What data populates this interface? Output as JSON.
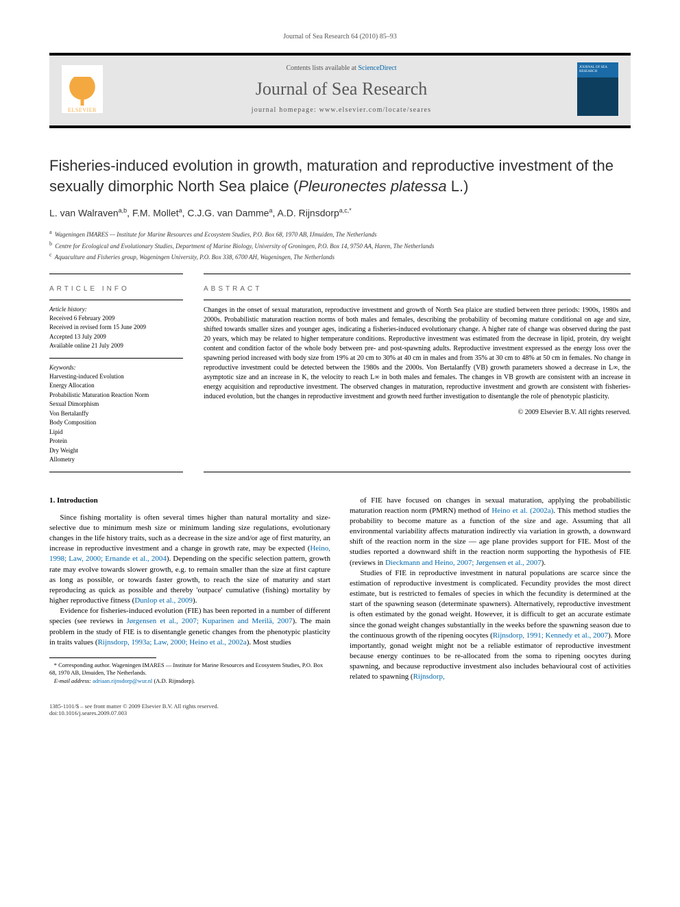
{
  "header": {
    "running_head": "Journal of Sea Research 64 (2010) 85–93"
  },
  "banner": {
    "contents_prefix": "Contents lists available at ",
    "contents_link": "ScienceDirect",
    "journal_name": "Journal of Sea Research",
    "homepage_prefix": "journal homepage: ",
    "homepage_url": "www.elsevier.com/locate/seares",
    "publisher_name": "ELSEVIER",
    "cover_text": "JOURNAL OF SEA RESEARCH"
  },
  "title": {
    "main": "Fisheries-induced evolution in growth, maturation and reproductive investment of the sexually dimorphic North Sea plaice (",
    "italic": "Pleuronectes platessa",
    "tail": " L.)"
  },
  "authors_line": "L. van Walraven",
  "authors": [
    {
      "name": "L. van Walraven",
      "sup": "a,b"
    },
    {
      "name": "F.M. Mollet",
      "sup": "a"
    },
    {
      "name": "C.J.G. van Damme",
      "sup": "a"
    },
    {
      "name": "A.D. Rijnsdorp",
      "sup": "a,c,*"
    }
  ],
  "affiliations": [
    {
      "key": "a",
      "text": "Wageningen IMARES — Institute for Marine Resources and Ecosystem Studies, P.O. Box 68, 1970 AB, IJmuiden, The Netherlands"
    },
    {
      "key": "b",
      "text": "Centre for Ecological and Evolutionary Studies, Department of Marine Biology, University of Groningen, P.O. Box 14, 9750 AA, Haren, The Netherlands"
    },
    {
      "key": "c",
      "text": "Aquaculture and Fisheries group, Wageningen University, P.O. Box 338, 6700 AH, Wageningen, The Netherlands"
    }
  ],
  "article_info": {
    "heading": "article info",
    "history_label": "Article history:",
    "history": [
      "Received 6 February 2009",
      "Received in revised form 15 June 2009",
      "Accepted 13 July 2009",
      "Available online 21 July 2009"
    ],
    "keywords_label": "Keywords:",
    "keywords": [
      "Harvesting-induced Evolution",
      "Energy Allocation",
      "Probabilistic Maturation Reaction Norm",
      "Sexual Dimorphism",
      "Von Bertalanffy",
      "Body Composition",
      "Lipid",
      "Protein",
      "Dry Weight",
      "Allometry"
    ]
  },
  "abstract": {
    "heading": "abstract",
    "text": "Changes in the onset of sexual maturation, reproductive investment and growth of North Sea plaice are studied between three periods: 1900s, 1980s and 2000s. Probabilistic maturation reaction norms of both males and females, describing the probability of becoming mature conditional on age and size, shifted towards smaller sizes and younger ages, indicating a fisheries-induced evolutionary change. A higher rate of change was observed during the past 20 years, which may be related to higher temperature conditions. Reproductive investment was estimated from the decrease in lipid, protein, dry weight content and condition factor of the whole body between pre- and post-spawning adults. Reproductive investment expressed as the energy loss over the spawning period increased with body size from 19% at 20 cm to 30% at 40 cm in males and from 35% at 30 cm to 48% at 50 cm in females. No change in reproductive investment could be detected between the 1980s and the 2000s. Von Bertalanffy (VB) growth parameters showed a decrease in L∞, the asymptotic size and an increase in K, the velocity to reach L∞ in both males and females. The changes in VB growth are consistent with an increase in energy acquisition and reproductive investment. The observed changes in maturation, reproductive investment and growth are consistent with fisheries-induced evolution, but the changes in reproductive investment and growth need further investigation to disentangle the role of phenotypic plasticity.",
    "copyright": "© 2009 Elsevier B.V. All rights reserved."
  },
  "body": {
    "section_number": "1.",
    "section_title": "Introduction",
    "p1a": "Since fishing mortality is often several times higher than natural mortality and size-selective due to minimum mesh size or minimum landing size regulations, evolutionary changes in the life history traits, such as a decrease in the size and/or age of first maturity, an increase in reproductive investment and a change in growth rate, may be expected (",
    "c1": "Heino, 1998; Law, 2000; Ernande et al., 2004",
    "p1b": "). Depending on the specific selection pattern, growth rate may evolve towards slower growth, e.g. to remain smaller than the size at first capture as long as possible, or towards faster growth, to reach the size of maturity and start reproducing as quick as possible and thereby 'outpace' cumulative (fishing) mortality by higher reproductive fitness (",
    "c2": "Dunlop et al., 2009",
    "p1c": ").",
    "p2a": "Evidence for fisheries-induced evolution (FIE) has been reported in a number of different species (see reviews in ",
    "c3": "Jørgensen et al., 2007; Kuparinen and Merilä, 2007",
    "p2b": "). The main problem in the study of FIE is to disentangle genetic changes from the phenotypic plasticity in traits values (",
    "c4": "Rijnsdorp, 1993a; Law, 2000; Heino et al., 2002a",
    "p2c": "). Most studies",
    "p3a": "of FIE have focused on changes in sexual maturation, applying the probabilistic maturation reaction norm (PMRN) method of ",
    "c5": "Heino et al. (2002a)",
    "p3b": ". This method studies the probability to become mature as a function of the size and age. Assuming that all environmental variability affects maturation indirectly via variation in growth, a downward shift of the reaction norm in the size — age plane provides support for FIE. Most of the studies reported a downward shift in the reaction norm supporting the hypothesis of FIE (reviews in ",
    "c6": "Dieckmann and Heino, 2007; Jørgensen et al., 2007",
    "p3c": ").",
    "p4a": "Studies of FIE in reproductive investment in natural populations are scarce since the estimation of reproductive investment is complicated. Fecundity provides the most direct estimate, but is restricted to females of species in which the fecundity is determined at the start of the spawning season (determinate spawners). Alternatively, reproductive investment is often estimated by the gonad weight. However, it is difficult to get an accurate estimate since the gonad weight changes substantially in the weeks before the spawning season due to the continuous growth of the ripening oocytes (",
    "c7": "Rijnsdorp, 1991; Kennedy et al., 2007",
    "p4b": "). More importantly, gonad weight might not be a reliable estimator of reproductive investment because energy continues to be re-allocated from the soma to ripening oocytes during spawning, and because reproductive investment also includes behavioural cost of activities related to spawning (",
    "c8": "Rijnsdorp,"
  },
  "footnote": {
    "corr": "* Corresponding author. Wageningen IMARES — Institute for Marine Resources and Ecosystem Studies, P.O. Box 68, 1970 AB, IJmuiden, The Netherlands.",
    "email_label": "E-mail address:",
    "email": "adriaan.rijnsdorp@wur.nl",
    "email_who": "(A.D. Rijnsdorp)."
  },
  "footer": {
    "left1": "1385-1101/$ – see front matter © 2009 Elsevier B.V. All rights reserved.",
    "left2": "doi:10.1016/j.seares.2009.07.003"
  },
  "colors": {
    "link": "#0066aa",
    "banner_bg": "#e6e6e6",
    "elsevier_orange": "#f4a940",
    "cover_top": "#1a6ba8",
    "cover_bottom": "#0d3e5e",
    "text": "#000000",
    "heading_gray": "#666666"
  }
}
